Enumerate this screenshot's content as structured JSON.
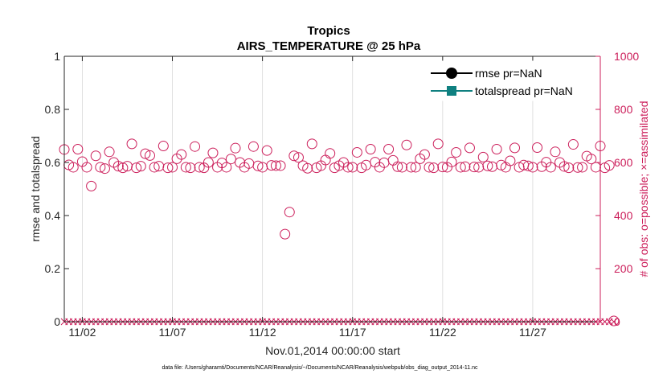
{
  "chart_data": {
    "type": "scatter",
    "title": "Tropics",
    "subtitle": "AIRS_TEMPERATURE @ 25 hPa",
    "xlabel": "Nov.01,2014 00:00:00 start",
    "ylabel_left": "rmse and totalspread",
    "ylabel_right": "# of obs: o=possible; ×=assimilated",
    "footnote": "data file: /Users/gharamti/Documents/NCAR/Reanalysis/~/Documents/NCAR/Reanalysis/webpub/obs_diag_output_2014-11.nc",
    "xlim": [
      1,
      30.75
    ],
    "ylim_left": [
      0,
      1
    ],
    "ylim_right": [
      0,
      1000
    ],
    "x_ticks": [
      2,
      7,
      12,
      17,
      22,
      27
    ],
    "x_tick_labels": [
      "11/02",
      "11/07",
      "11/12",
      "11/17",
      "11/22",
      "11/27"
    ],
    "left_ticks": [
      0,
      0.2,
      0.4,
      0.6,
      0.8,
      1
    ],
    "left_tick_labels": [
      "0",
      "0.2",
      "0.4",
      "0.6",
      "0.8",
      "1"
    ],
    "right_ticks": [
      0,
      200,
      400,
      600,
      800,
      1000
    ],
    "right_tick_labels": [
      "0",
      "200",
      "400",
      "600",
      "800",
      "1000"
    ],
    "legend": {
      "location": "top-right",
      "entries": [
        {
          "label": "rmse pr=NaN",
          "color": "#000000",
          "marker": "circle-filled"
        },
        {
          "label": "totalspread pr=NaN",
          "color": "#0f8080",
          "marker": "square-filled"
        }
      ]
    },
    "series": [
      {
        "name": "possible",
        "axis": "right",
        "marker": "circle",
        "color": "#cc1f5b",
        "x_start": 1,
        "x_step": 0.25,
        "values": [
          649,
          591,
          582,
          650,
          603,
          582,
          511,
          625,
          582,
          577,
          640,
          600,
          586,
          580,
          586,
          670,
          580,
          586,
          633,
          626,
          582,
          586,
          662,
          580,
          582,
          614,
          630,
          582,
          580,
          660,
          582,
          580,
          600,
          636,
          582,
          598,
          582,
          613,
          654,
          600,
          582,
          596,
          660,
          587,
          582,
          645,
          589,
          588,
          588,
          330,
          413,
          625,
          619,
          588,
          578,
          670,
          580,
          588,
          609,
          634,
          580,
          588,
          600,
          582,
          582,
          638,
          580,
          590,
          650,
          601,
          582,
          599,
          650,
          608,
          584,
          582,
          666,
          582,
          582,
          614,
          630,
          582,
          580,
          670,
          583,
          582,
          602,
          638,
          582,
          584,
          655,
          583,
          582,
          620,
          587,
          584,
          650,
          590,
          582,
          606,
          655,
          582,
          590,
          587,
          582,
          656,
          584,
          601,
          582,
          640,
          600,
          585,
          580,
          668,
          581,
          582,
          624,
          613,
          582,
          662,
          580,
          589,
          3
        ]
      },
      {
        "name": "assimilated",
        "axis": "right",
        "marker": "x",
        "color": "#cc1f5b",
        "x_start": 1,
        "x_step": 0.25,
        "count": 123,
        "value": 0
      }
    ]
  }
}
